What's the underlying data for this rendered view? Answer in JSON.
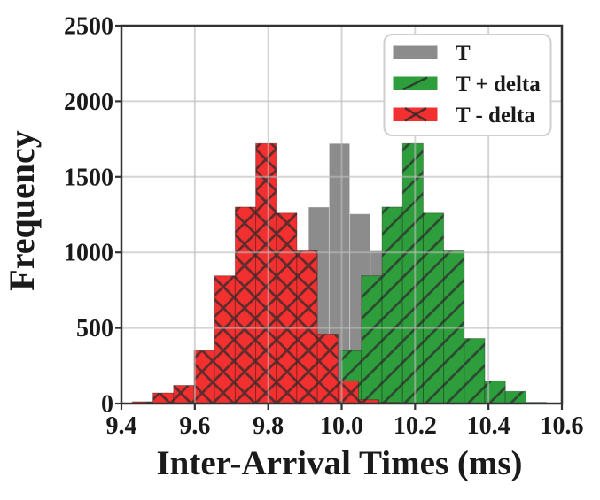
{
  "chart_data": {
    "type": "bar",
    "subtype": "histogram",
    "title": "",
    "xlabel": "Inter-Arrival Times (ms)",
    "ylabel": "Frequency",
    "xlim": [
      9.4,
      10.6
    ],
    "ylim": [
      0,
      2500
    ],
    "xticks": [
      9.4,
      9.6,
      9.8,
      10.0,
      10.2,
      10.4,
      10.6
    ],
    "xtick_labels": [
      "9.4",
      "9.6",
      "9.8",
      "10.0",
      "10.2",
      "10.4",
      "10.6"
    ],
    "yticks": [
      0,
      500,
      1000,
      1500,
      2000,
      2500
    ],
    "ytick_labels": [
      "0",
      "500",
      "1000",
      "1500",
      "2000",
      "2500"
    ],
    "grid": true,
    "legend_position": "upper right",
    "bin_width": 0.056,
    "series": [
      {
        "name": "T",
        "color": "#8c8c8c",
        "hatch": "none",
        "bin_start": 9.63,
        "bin_heights": [
          12,
          70,
          120,
          350,
          845,
          1300,
          1720,
          1255,
          1010,
          450,
          150,
          55,
          12
        ]
      },
      {
        "name": "T + delta",
        "color": "#2e9e3c",
        "hatch": "diagonal",
        "bin_start": 9.83,
        "bin_heights": [
          12,
          70,
          120,
          350,
          845,
          1300,
          1720,
          1260,
          1010,
          430,
          150,
          80,
          8
        ]
      },
      {
        "name": "T - delta",
        "color": "#f23030",
        "hatch": "cross",
        "bin_start": 9.43,
        "bin_heights": [
          12,
          70,
          120,
          350,
          845,
          1300,
          1720,
          1260,
          1010,
          460,
          150,
          25,
          8
        ]
      }
    ],
    "colors": {
      "axis": "#333333",
      "grid": "#bcbcbc",
      "hatch": "#2b2b2b",
      "legend_border": "#cfcfcf",
      "background": "#ffffff"
    }
  }
}
